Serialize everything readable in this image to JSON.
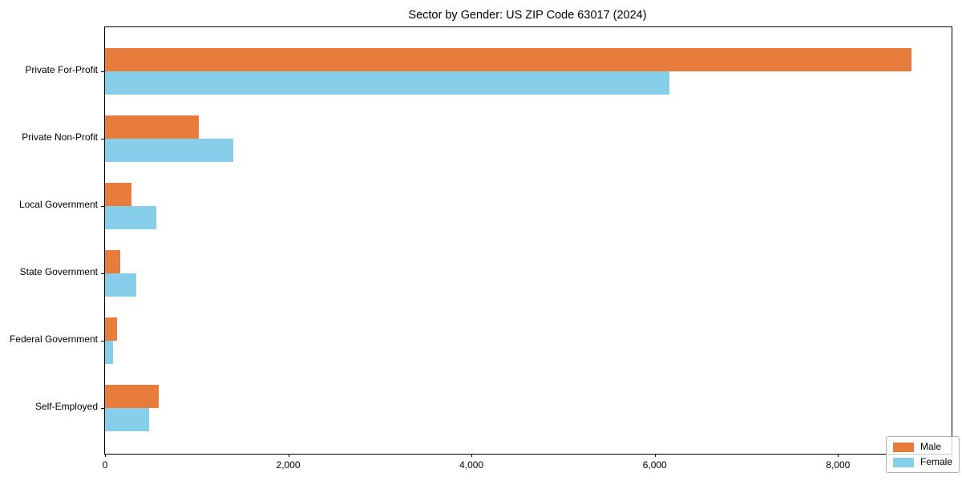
{
  "chart_data": {
    "type": "bar",
    "orientation": "horizontal",
    "title": "Sector by Gender: US ZIP Code 63017 (2024)",
    "categories": [
      "Private For-Profit",
      "Private Non-Profit",
      "Local Government",
      "State Government",
      "Federal Government",
      "Self-Employed"
    ],
    "series": [
      {
        "name": "Male",
        "color": "#E87C3C",
        "values": [
          8800,
          1020,
          290,
          170,
          130,
          590
        ]
      },
      {
        "name": "Female",
        "color": "#87CEEB",
        "values": [
          6160,
          1400,
          560,
          340,
          85,
          480
        ]
      }
    ],
    "xlabel": "",
    "ylabel": "",
    "xlim": [
      0,
      9240
    ],
    "xticks": {
      "values": [
        0,
        2000,
        4000,
        6000,
        8000
      ],
      "labels": [
        "0",
        "2,000",
        "4,000",
        "6,000",
        "8,000"
      ]
    },
    "grid": false,
    "legend": {
      "position": "lower right",
      "entries": [
        "Male",
        "Female"
      ]
    }
  }
}
